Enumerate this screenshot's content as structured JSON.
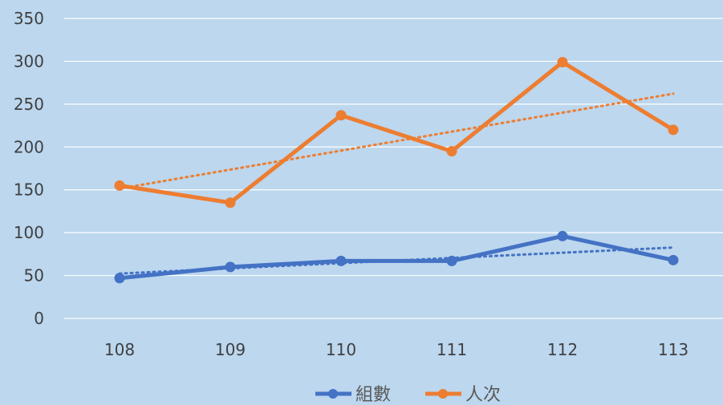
{
  "chart_data": {
    "type": "line",
    "title": "",
    "xlabel": "",
    "ylabel": "",
    "categories": [
      "108",
      "109",
      "110",
      "111",
      "112",
      "113"
    ],
    "ylim": [
      0,
      350
    ],
    "yticks": [
      "0",
      "50",
      "100",
      "150",
      "200",
      "250",
      "300",
      "350"
    ],
    "grid": true,
    "legend_position": "bottom",
    "series": [
      {
        "name": "組數",
        "values": [
          47,
          60,
          67,
          67,
          96,
          68
        ],
        "color": "#4472c4",
        "trendline": true
      },
      {
        "name": "人次",
        "values": [
          155,
          135,
          237,
          195,
          299,
          220
        ],
        "color": "#ed7d31",
        "trendline": true
      }
    ],
    "colors": {
      "background": "#bcd7ee",
      "gridline": "#ffffff",
      "tick_text": "#404040"
    }
  }
}
